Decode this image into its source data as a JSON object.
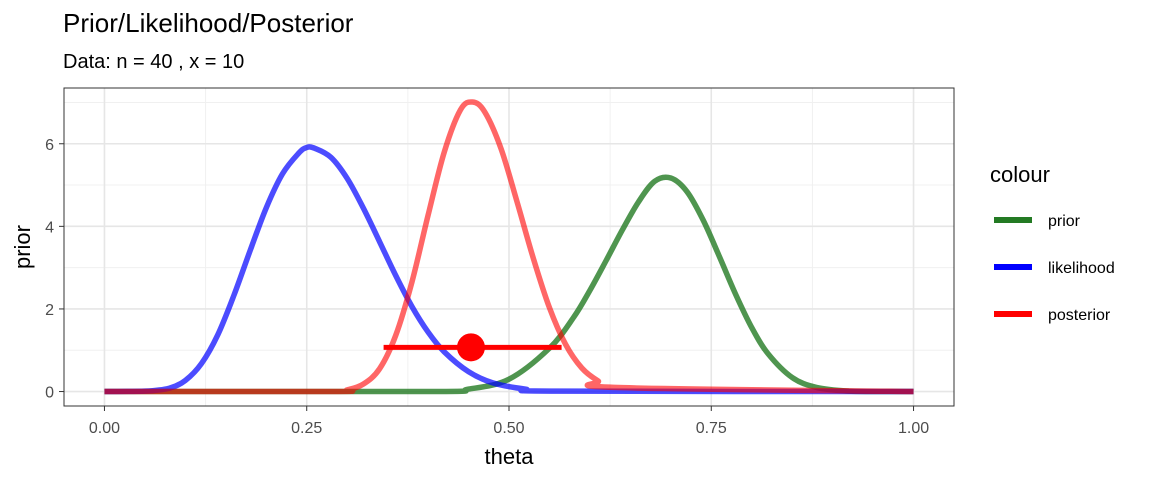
{
  "chart_data": {
    "type": "line",
    "title": "Prior/Likelihood/Posterior",
    "subtitle": "Data: n = 40 , x = 10",
    "xlabel": "theta",
    "ylabel": "prior",
    "xlim": [
      -0.05,
      1.05
    ],
    "ylim": [
      -0.35,
      7.35
    ],
    "x_ticks": [
      0.0,
      0.25,
      0.5,
      0.75,
      1.0
    ],
    "x_tick_labels": [
      "0.00",
      "0.25",
      "0.50",
      "0.75",
      "1.00"
    ],
    "y_ticks": [
      0,
      2,
      4,
      6
    ],
    "y_tick_labels": [
      "0",
      "2",
      "4",
      "6"
    ],
    "grid": true,
    "legend_title": "colour",
    "legend_position": "right",
    "series": [
      {
        "name": "prior",
        "color": "#237a23",
        "opacity": 0.8,
        "x": [
          0.4,
          0.45,
          0.5,
          0.55,
          0.58,
          0.6,
          0.62,
          0.64,
          0.66,
          0.68,
          0.7,
          0.72,
          0.74,
          0.76,
          0.78,
          0.8,
          0.82,
          0.85,
          0.88,
          0.92,
          0.96
        ],
        "y": [
          0.0,
          0.06,
          0.3,
          1.05,
          1.8,
          2.45,
          3.17,
          3.91,
          4.59,
          5.09,
          5.17,
          4.84,
          4.15,
          3.27,
          2.36,
          1.55,
          0.92,
          0.34,
          0.1,
          0.01,
          0.0
        ]
      },
      {
        "name": "likelihood",
        "color": "#0000ff",
        "opacity": 0.7,
        "x": [
          0.05,
          0.08,
          0.1,
          0.12,
          0.14,
          0.16,
          0.18,
          0.2,
          0.22,
          0.24,
          0.25,
          0.26,
          0.28,
          0.3,
          0.32,
          0.34,
          0.36,
          0.38,
          0.4,
          0.42,
          0.45,
          0.48,
          0.52,
          0.56
        ],
        "y": [
          0.01,
          0.08,
          0.27,
          0.68,
          1.37,
          2.33,
          3.41,
          4.45,
          5.27,
          5.77,
          5.91,
          5.89,
          5.67,
          5.16,
          4.44,
          3.63,
          2.81,
          2.06,
          1.44,
          0.96,
          0.48,
          0.21,
          0.06,
          0.01
        ]
      },
      {
        "name": "posterior",
        "color": "#ff0000",
        "opacity": 0.6,
        "x": [
          0.28,
          0.3,
          0.32,
          0.34,
          0.36,
          0.38,
          0.4,
          0.42,
          0.44,
          0.455,
          0.47,
          0.49,
          0.51,
          0.53,
          0.55,
          0.57,
          0.59,
          0.61,
          0.63
        ],
        "y": [
          0.0,
          0.04,
          0.18,
          0.55,
          1.36,
          2.65,
          4.27,
          5.8,
          6.82,
          7.01,
          6.77,
          5.89,
          4.59,
          3.23,
          2.03,
          1.14,
          0.57,
          0.26,
          0.1
        ]
      }
    ],
    "interval": {
      "color": "#ff0000",
      "x_low": 0.345,
      "x_high": 0.565,
      "y": 1.07,
      "point_x": 0.453,
      "point_y": 1.07
    }
  }
}
